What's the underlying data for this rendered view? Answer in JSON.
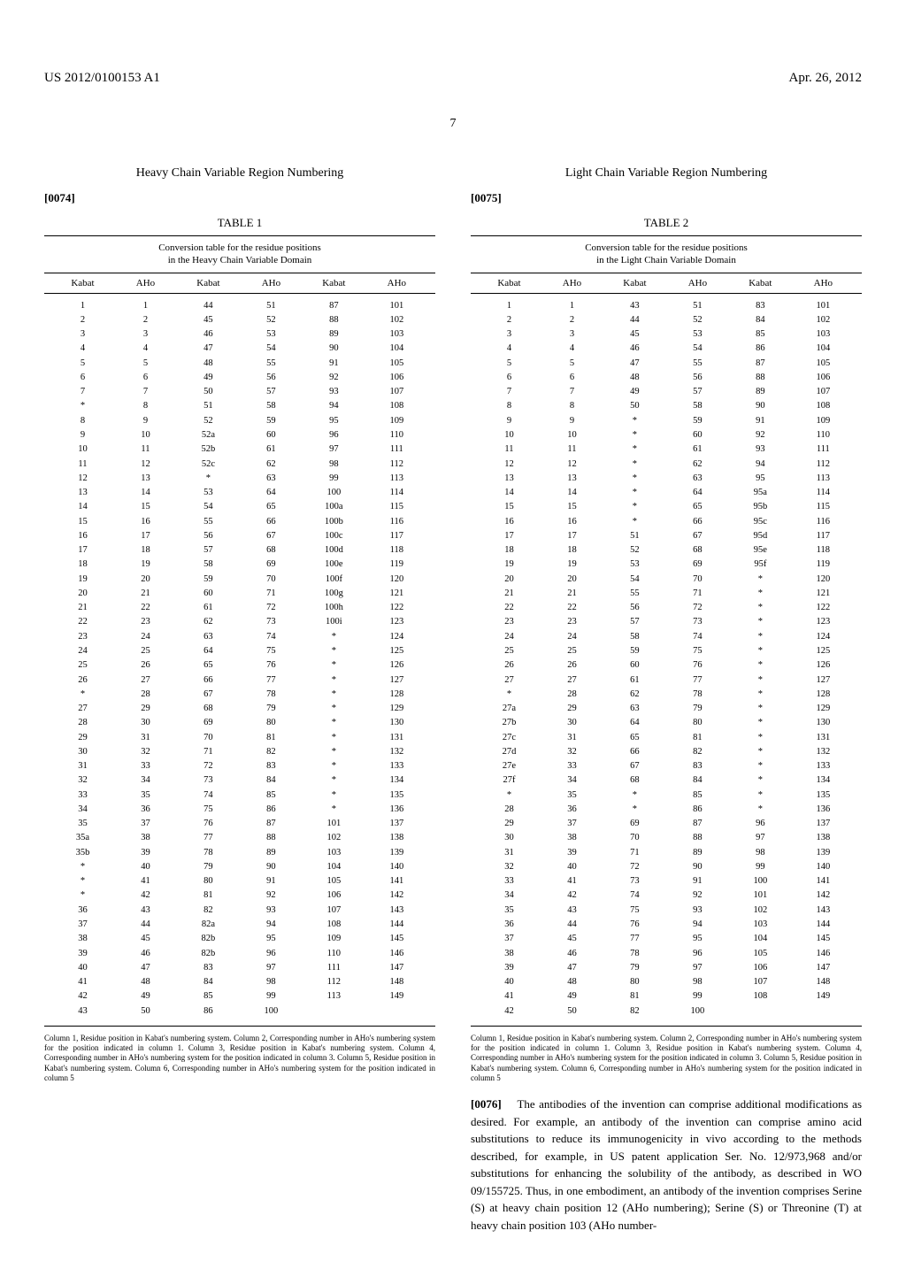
{
  "header": {
    "pub_number": "US 2012/0100153 A1",
    "date": "Apr. 26, 2012"
  },
  "page_number": "7",
  "left": {
    "section_title": "Heavy Chain Variable Region Numbering",
    "para_num": "[0074]",
    "table_label": "TABLE 1",
    "table_caption_line1": "Conversion table for the residue positions",
    "table_caption_line2": "in the Heavy Chain Variable Domain",
    "columns": [
      "Kabat",
      "AHo",
      "Kabat",
      "AHo",
      "Kabat",
      "AHo"
    ],
    "rows": [
      [
        "1",
        "1",
        "44",
        "51",
        "87",
        "101"
      ],
      [
        "2",
        "2",
        "45",
        "52",
        "88",
        "102"
      ],
      [
        "3",
        "3",
        "46",
        "53",
        "89",
        "103"
      ],
      [
        "4",
        "4",
        "47",
        "54",
        "90",
        "104"
      ],
      [
        "5",
        "5",
        "48",
        "55",
        "91",
        "105"
      ],
      [
        "6",
        "6",
        "49",
        "56",
        "92",
        "106"
      ],
      [
        "7",
        "7",
        "50",
        "57",
        "93",
        "107"
      ],
      [
        "*",
        "8",
        "51",
        "58",
        "94",
        "108"
      ],
      [
        "8",
        "9",
        "52",
        "59",
        "95",
        "109"
      ],
      [
        "9",
        "10",
        "52a",
        "60",
        "96",
        "110"
      ],
      [
        "10",
        "11",
        "52b",
        "61",
        "97",
        "111"
      ],
      [
        "11",
        "12",
        "52c",
        "62",
        "98",
        "112"
      ],
      [
        "12",
        "13",
        "*",
        "63",
        "99",
        "113"
      ],
      [
        "13",
        "14",
        "53",
        "64",
        "100",
        "114"
      ],
      [
        "14",
        "15",
        "54",
        "65",
        "100a",
        "115"
      ],
      [
        "15",
        "16",
        "55",
        "66",
        "100b",
        "116"
      ],
      [
        "16",
        "17",
        "56",
        "67",
        "100c",
        "117"
      ],
      [
        "17",
        "18",
        "57",
        "68",
        "100d",
        "118"
      ],
      [
        "18",
        "19",
        "58",
        "69",
        "100e",
        "119"
      ],
      [
        "19",
        "20",
        "59",
        "70",
        "100f",
        "120"
      ],
      [
        "20",
        "21",
        "60",
        "71",
        "100g",
        "121"
      ],
      [
        "21",
        "22",
        "61",
        "72",
        "100h",
        "122"
      ],
      [
        "22",
        "23",
        "62",
        "73",
        "100i",
        "123"
      ],
      [
        "23",
        "24",
        "63",
        "74",
        "*",
        "124"
      ],
      [
        "24",
        "25",
        "64",
        "75",
        "*",
        "125"
      ],
      [
        "25",
        "26",
        "65",
        "76",
        "*",
        "126"
      ],
      [
        "26",
        "27",
        "66",
        "77",
        "*",
        "127"
      ],
      [
        "*",
        "28",
        "67",
        "78",
        "*",
        "128"
      ],
      [
        "27",
        "29",
        "68",
        "79",
        "*",
        "129"
      ],
      [
        "28",
        "30",
        "69",
        "80",
        "*",
        "130"
      ],
      [
        "29",
        "31",
        "70",
        "81",
        "*",
        "131"
      ],
      [
        "30",
        "32",
        "71",
        "82",
        "*",
        "132"
      ],
      [
        "31",
        "33",
        "72",
        "83",
        "*",
        "133"
      ],
      [
        "32",
        "34",
        "73",
        "84",
        "*",
        "134"
      ],
      [
        "33",
        "35",
        "74",
        "85",
        "*",
        "135"
      ],
      [
        "34",
        "36",
        "75",
        "86",
        "*",
        "136"
      ],
      [
        "35",
        "37",
        "76",
        "87",
        "101",
        "137"
      ],
      [
        "35a",
        "38",
        "77",
        "88",
        "102",
        "138"
      ],
      [
        "35b",
        "39",
        "78",
        "89",
        "103",
        "139"
      ],
      [
        "*",
        "40",
        "79",
        "90",
        "104",
        "140"
      ],
      [
        "*",
        "41",
        "80",
        "91",
        "105",
        "141"
      ],
      [
        "*",
        "42",
        "81",
        "92",
        "106",
        "142"
      ],
      [
        "36",
        "43",
        "82",
        "93",
        "107",
        "143"
      ],
      [
        "37",
        "44",
        "82a",
        "94",
        "108",
        "144"
      ],
      [
        "38",
        "45",
        "82b",
        "95",
        "109",
        "145"
      ],
      [
        "39",
        "46",
        "82b",
        "96",
        "110",
        "146"
      ],
      [
        "40",
        "47",
        "83",
        "97",
        "111",
        "147"
      ],
      [
        "41",
        "48",
        "84",
        "98",
        "112",
        "148"
      ],
      [
        "42",
        "49",
        "85",
        "99",
        "113",
        "149"
      ],
      [
        "43",
        "50",
        "86",
        "100",
        "",
        ""
      ]
    ],
    "footnote": "Column 1, Residue position in Kabat's numbering system. Column 2, Corresponding number in AHo's numbering system for the position indicated in column 1. Column 3, Residue position in Kabat's numbering system. Column 4, Corresponding number in AHo's numbering system for the position indicated in column 3. Column 5, Residue position in Kabat's numbering system. Column 6, Corresponding number in AHo's numbering system for the position indicated in column 5"
  },
  "right": {
    "section_title": "Light Chain Variable Region Numbering",
    "para_num": "[0075]",
    "table_label": "TABLE 2",
    "table_caption_line1": "Conversion table for the residue positions",
    "table_caption_line2": "in the Light Chain Variable Domain",
    "columns": [
      "Kabat",
      "AHo",
      "Kabat",
      "AHo",
      "Kabat",
      "AHo"
    ],
    "rows": [
      [
        "1",
        "1",
        "43",
        "51",
        "83",
        "101"
      ],
      [
        "2",
        "2",
        "44",
        "52",
        "84",
        "102"
      ],
      [
        "3",
        "3",
        "45",
        "53",
        "85",
        "103"
      ],
      [
        "4",
        "4",
        "46",
        "54",
        "86",
        "104"
      ],
      [
        "5",
        "5",
        "47",
        "55",
        "87",
        "105"
      ],
      [
        "6",
        "6",
        "48",
        "56",
        "88",
        "106"
      ],
      [
        "7",
        "7",
        "49",
        "57",
        "89",
        "107"
      ],
      [
        "8",
        "8",
        "50",
        "58",
        "90",
        "108"
      ],
      [
        "9",
        "9",
        "*",
        "59",
        "91",
        "109"
      ],
      [
        "10",
        "10",
        "*",
        "60",
        "92",
        "110"
      ],
      [
        "11",
        "11",
        "*",
        "61",
        "93",
        "111"
      ],
      [
        "12",
        "12",
        "*",
        "62",
        "94",
        "112"
      ],
      [
        "13",
        "13",
        "*",
        "63",
        "95",
        "113"
      ],
      [
        "14",
        "14",
        "*",
        "64",
        "95a",
        "114"
      ],
      [
        "15",
        "15",
        "*",
        "65",
        "95b",
        "115"
      ],
      [
        "16",
        "16",
        "*",
        "66",
        "95c",
        "116"
      ],
      [
        "17",
        "17",
        "51",
        "67",
        "95d",
        "117"
      ],
      [
        "18",
        "18",
        "52",
        "68",
        "95e",
        "118"
      ],
      [
        "19",
        "19",
        "53",
        "69",
        "95f",
        "119"
      ],
      [
        "20",
        "20",
        "54",
        "70",
        "*",
        "120"
      ],
      [
        "21",
        "21",
        "55",
        "71",
        "*",
        "121"
      ],
      [
        "22",
        "22",
        "56",
        "72",
        "*",
        "122"
      ],
      [
        "23",
        "23",
        "57",
        "73",
        "*",
        "123"
      ],
      [
        "24",
        "24",
        "58",
        "74",
        "*",
        "124"
      ],
      [
        "25",
        "25",
        "59",
        "75",
        "*",
        "125"
      ],
      [
        "26",
        "26",
        "60",
        "76",
        "*",
        "126"
      ],
      [
        "27",
        "27",
        "61",
        "77",
        "*",
        "127"
      ],
      [
        "*",
        "28",
        "62",
        "78",
        "*",
        "128"
      ],
      [
        "27a",
        "29",
        "63",
        "79",
        "*",
        "129"
      ],
      [
        "27b",
        "30",
        "64",
        "80",
        "*",
        "130"
      ],
      [
        "27c",
        "31",
        "65",
        "81",
        "*",
        "131"
      ],
      [
        "27d",
        "32",
        "66",
        "82",
        "*",
        "132"
      ],
      [
        "27e",
        "33",
        "67",
        "83",
        "*",
        "133"
      ],
      [
        "27f",
        "34",
        "68",
        "84",
        "*",
        "134"
      ],
      [
        "*",
        "35",
        "*",
        "85",
        "*",
        "135"
      ],
      [
        "28",
        "36",
        "*",
        "86",
        "*",
        "136"
      ],
      [
        "29",
        "37",
        "69",
        "87",
        "96",
        "137"
      ],
      [
        "30",
        "38",
        "70",
        "88",
        "97",
        "138"
      ],
      [
        "31",
        "39",
        "71",
        "89",
        "98",
        "139"
      ],
      [
        "32",
        "40",
        "72",
        "90",
        "99",
        "140"
      ],
      [
        "33",
        "41",
        "73",
        "91",
        "100",
        "141"
      ],
      [
        "34",
        "42",
        "74",
        "92",
        "101",
        "142"
      ],
      [
        "35",
        "43",
        "75",
        "93",
        "102",
        "143"
      ],
      [
        "36",
        "44",
        "76",
        "94",
        "103",
        "144"
      ],
      [
        "37",
        "45",
        "77",
        "95",
        "104",
        "145"
      ],
      [
        "38",
        "46",
        "78",
        "96",
        "105",
        "146"
      ],
      [
        "39",
        "47",
        "79",
        "97",
        "106",
        "147"
      ],
      [
        "40",
        "48",
        "80",
        "98",
        "107",
        "148"
      ],
      [
        "41",
        "49",
        "81",
        "99",
        "108",
        "149"
      ],
      [
        "42",
        "50",
        "82",
        "100",
        "",
        ""
      ]
    ],
    "footnote": "Column 1, Residue position in Kabat's numbering system. Column 2, Corresponding number in AHo's numbering system for the position indicated in column 1. Column 3, Residue position in Kabat's numbering system. Column 4, Corresponding number in AHo's numbering system for the position indicated in column 3. Column 5, Residue position in Kabat's numbering system. Column 6, Corresponding number in AHo's numbering system for the position indicated in column 5",
    "body_para_num": "[0076]",
    "body_text": "The antibodies of the invention can comprise additional modifications as desired. For example, an antibody of the invention can comprise amino acid substitutions to reduce its immunogenicity in vivo according to the methods described, for example, in US patent application Ser. No. 12/973,968 and/or substitutions for enhancing the solubility of the antibody, as described in WO 09/155725. Thus, in one embodiment, an antibody of the invention comprises Serine (S) at heavy chain position 12 (AHo numbering); Serine (S) or Threonine (T) at heavy chain position 103 (AHo number-"
  }
}
